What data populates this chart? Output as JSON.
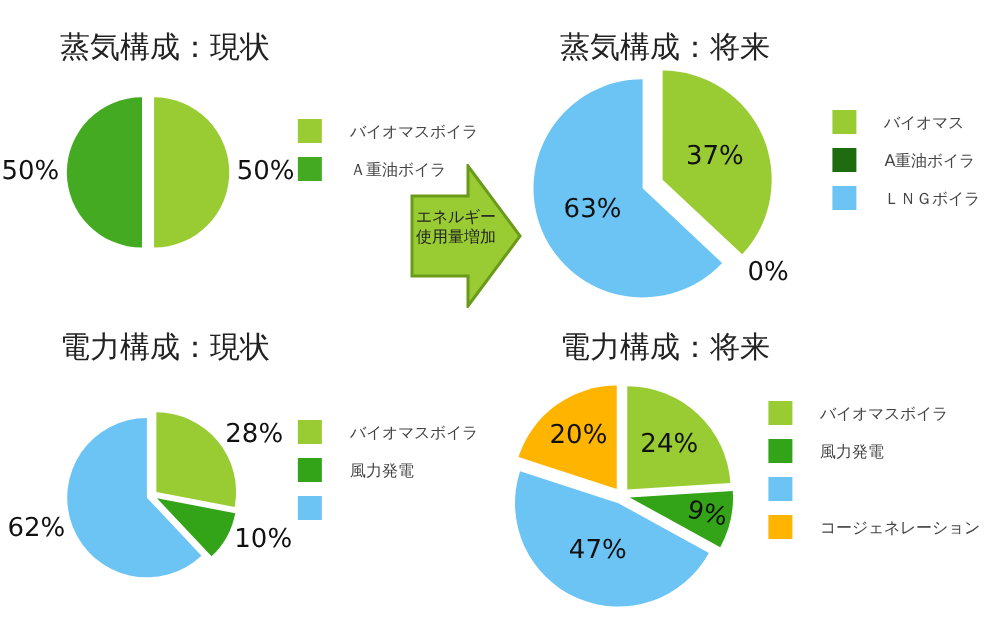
{
  "chart_data": [
    {
      "type": "pie",
      "title": "蒸気構成：現状",
      "categories": [
        "バイオマスボイラ",
        "Ａ重油ボイラ"
      ],
      "values": [
        50,
        50
      ],
      "colors": [
        "#99cc33",
        "#44aa22"
      ],
      "value_labels": [
        "50%",
        "50%"
      ],
      "legend": "right"
    },
    {
      "type": "pie",
      "title": "電力構成：現状",
      "categories": [
        "バイオマスボイラ",
        "風力発電",
        null
      ],
      "values": [
        28,
        10,
        62
      ],
      "colors": [
        "#99cc33",
        "#33a318",
        "#6cc4f5"
      ],
      "value_labels": [
        "28%",
        "10%",
        "62%"
      ],
      "legend": "right"
    },
    {
      "type": "pie",
      "title": "蒸気構成：将来",
      "categories": [
        "バイオマス",
        "A重油ボイラ",
        "ＬＮＧボイラ"
      ],
      "values": [
        37,
        0,
        63
      ],
      "colors": [
        "#99cc33",
        "#1f6b10",
        "#6cc4f5"
      ],
      "value_labels": [
        "37%",
        "0%",
        "63%"
      ],
      "legend": "right"
    },
    {
      "type": "pie",
      "title": "電力構成：将来",
      "categories": [
        "バイオマスボイラ",
        "風力発電",
        null,
        "コージェネレーション"
      ],
      "values": [
        24,
        9,
        47,
        20
      ],
      "colors": [
        "#99cc33",
        "#33a318",
        "#6cc4f5",
        "#ffb400"
      ],
      "value_labels": [
        "24%",
        "9%",
        "47%",
        "20%"
      ],
      "legend": "right"
    },
    {
      "type": "other",
      "annotations": [
        "エネルギー使用量増加"
      ]
    }
  ]
}
